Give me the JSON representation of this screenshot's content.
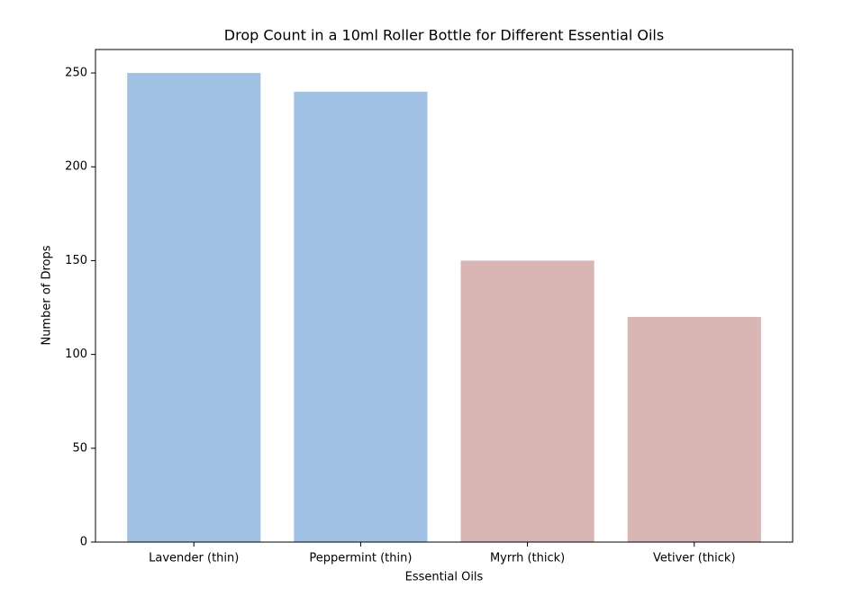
{
  "chart_data": {
    "type": "bar",
    "title": "Drop Count in a 10ml Roller Bottle for Different Essential Oils",
    "x_label": "Essential Oils",
    "y_label": "Number of Drops",
    "categories": [
      "Lavender (thin)",
      "Peppermint (thin)",
      "Myrrh (thick)",
      "Vetiver (thick)"
    ],
    "values": [
      250,
      240,
      150,
      120
    ],
    "colors": [
      "#a1c1e4",
      "#a1c1e4",
      "#d9b5b4",
      "#d9b5b4"
    ],
    "ylim": [
      0,
      262.5
    ],
    "yticks": [
      0,
      50,
      100,
      150,
      200,
      250
    ],
    "grid": false
  }
}
